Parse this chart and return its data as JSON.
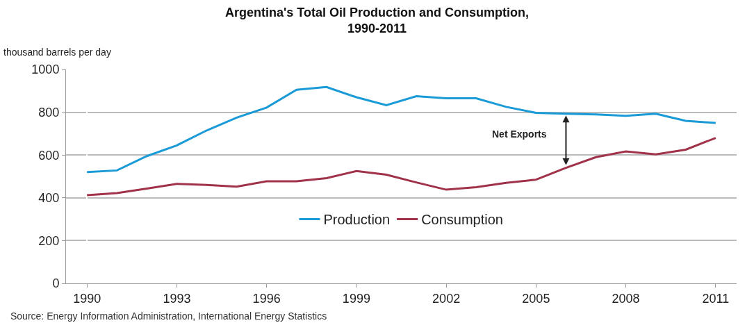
{
  "chart_data": {
    "type": "line",
    "title": "Argentina's Total Oil Production and Consumption,\n1990-2011",
    "ylabel": "thousand barrels per day",
    "categories": [
      "1990",
      null,
      null,
      "1993",
      null,
      null,
      "1996",
      null,
      null,
      "1999",
      null,
      null,
      "2002",
      null,
      null,
      "2005",
      null,
      null,
      "2008",
      null,
      null,
      "2011"
    ],
    "series": [
      {
        "name": "Production",
        "color": "#1a9ad6",
        "values": [
          520,
          528,
          595,
          645,
          715,
          775,
          822,
          905,
          918,
          870,
          833,
          875,
          865,
          865,
          825,
          797,
          793,
          790,
          783,
          793,
          760,
          750
        ]
      },
      {
        "name": "Consumption",
        "color": "#a0324a",
        "values": [
          412,
          422,
          443,
          465,
          460,
          452,
          477,
          477,
          492,
          525,
          508,
          472,
          438,
          450,
          470,
          485,
          540,
          590,
          617,
          603,
          625,
          680
        ]
      }
    ],
    "ylim": [
      0,
      1000
    ],
    "yticks": [
      0,
      200,
      400,
      600,
      800,
      1000
    ],
    "grid": "y",
    "legend": "bottom",
    "marker": "none",
    "line_style": "solid",
    "annotations": [
      "Net Exports",
      "Source: Energy Information Administration, International Energy Statistics"
    ]
  }
}
